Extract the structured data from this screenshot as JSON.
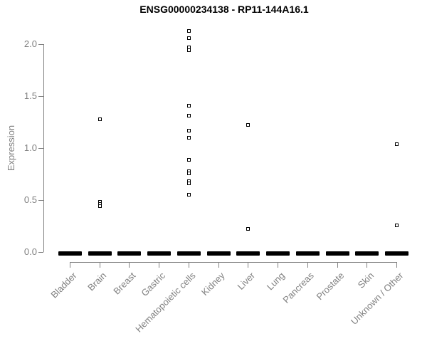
{
  "title": "ENSG00000234138 - RP11-144A16.1",
  "colors": {
    "point": "#000000",
    "axis_line": "#818181",
    "tick_label": "#808080",
    "title_text": "#000000",
    "background": "#ffffff"
  },
  "chart_data": {
    "type": "scatter",
    "title": "ENSG00000234138 - RP11-144A16.1",
    "xlabel": "",
    "ylabel": "Expression",
    "ylim": [
      0.0,
      2.15
    ],
    "yticks": [
      0.0,
      0.5,
      1.0,
      1.5,
      2.0
    ],
    "ytick_labels": [
      "0.0",
      "0.5",
      "1.0",
      "1.5",
      "2.0"
    ],
    "grid": false,
    "legend": "none",
    "marker": "open-square",
    "xtick_label_rotation_deg": 45,
    "categories": [
      "Bladder",
      "Brain",
      "Breast",
      "Gastric",
      "Hematopoietic cells",
      "Kidney",
      "Liver",
      "Lung",
      "Pancreas",
      "Prostate",
      "Skin",
      "Unknown / Other"
    ],
    "zero_cluster_note": "every category shows a dense horizontal cluster of overlapping points at expression 0, rendered as a thick black dash",
    "series": [
      {
        "category": "Bladder",
        "nonzero_points": [],
        "zero_cluster": true
      },
      {
        "category": "Brain",
        "nonzero_points": [
          1.28,
          0.48,
          0.46,
          0.44
        ],
        "zero_cluster": true
      },
      {
        "category": "Breast",
        "nonzero_points": [],
        "zero_cluster": true
      },
      {
        "category": "Gastric",
        "nonzero_points": [],
        "zero_cluster": true
      },
      {
        "category": "Hematopoietic cells",
        "nonzero_points": [
          2.13,
          2.06,
          1.97,
          1.94,
          1.41,
          1.31,
          1.17,
          1.1,
          0.89,
          0.78,
          0.76,
          0.68,
          0.66,
          0.55
        ],
        "zero_cluster": true
      },
      {
        "category": "Kidney",
        "nonzero_points": [],
        "zero_cluster": true
      },
      {
        "category": "Liver",
        "nonzero_points": [
          1.22,
          0.22
        ],
        "zero_cluster": true
      },
      {
        "category": "Lung",
        "nonzero_points": [],
        "zero_cluster": true
      },
      {
        "category": "Pancreas",
        "nonzero_points": [],
        "zero_cluster": true
      },
      {
        "category": "Prostate",
        "nonzero_points": [],
        "zero_cluster": true
      },
      {
        "category": "Skin",
        "nonzero_points": [],
        "zero_cluster": true
      },
      {
        "category": "Unknown / Other",
        "nonzero_points": [
          1.04,
          0.26
        ],
        "zero_cluster": true
      }
    ]
  }
}
